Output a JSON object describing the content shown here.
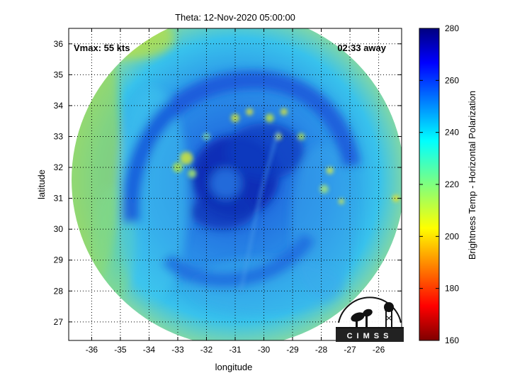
{
  "title": "Theta: 12-Nov-2020 05:00:00",
  "annotations": {
    "vmax": "Vmax: 55 kts",
    "time_away": "02:33 away"
  },
  "axes": {
    "xlabel": "longitude",
    "ylabel": "latitude",
    "xlim": [
      -36.8,
      -25.2
    ],
    "ylim": [
      26.4,
      36.5
    ],
    "xticks": [
      "-36",
      "-35",
      "-34",
      "-33",
      "-32",
      "-31",
      "-30",
      "-29",
      "-28",
      "-27",
      "-26"
    ],
    "yticks": [
      "27",
      "28",
      "29",
      "30",
      "31",
      "32",
      "33",
      "34",
      "35",
      "36"
    ],
    "grid": "dotted"
  },
  "colorbar": {
    "label": "Brightness Temp - Horizontal Polarization",
    "range": [
      160,
      280
    ],
    "ticks": [
      "160",
      "180",
      "200",
      "220",
      "240",
      "260",
      "280"
    ],
    "colormap": "jet"
  },
  "storm": {
    "center_lon": -31.2,
    "center_lat": 31.6,
    "swath_center_lon": -30.9,
    "swath_center_lat": 31.6
  },
  "logo": {
    "text": "CIMSS"
  },
  "colors": {
    "background_field": "#1e78e6",
    "eye": "#0a2ab4",
    "outer": "#38c8ee",
    "edge": "#8ad86a"
  }
}
